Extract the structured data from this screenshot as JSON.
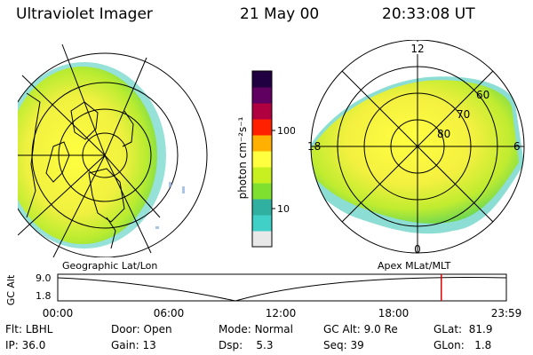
{
  "header": {
    "instrument": "Ultraviolet Imager",
    "date": "21 May 00",
    "time": "20:33:08 UT"
  },
  "colorbar": {
    "unit_label": "photon cm⁻²s⁻¹",
    "ticks": [
      "100",
      "10"
    ],
    "colors": [
      "#e8e8e8",
      "#40d0c8",
      "#30b0a0",
      "#80e030",
      "#c8f020",
      "#ffff40",
      "#ffb000",
      "#ff2000",
      "#b00040",
      "#600060",
      "#200040"
    ]
  },
  "left_map": {
    "label": "Geographic Lat/Lon"
  },
  "right_map": {
    "label": "Apex MLat/MLT",
    "mlt_labels": {
      "top": "12",
      "left": "18",
      "right": "6",
      "bottom": "0"
    },
    "lat_labels": [
      "60",
      "70",
      "80"
    ]
  },
  "timeline": {
    "ylabel": "GC Alt",
    "y_ticks": [
      "9.0",
      "1.8"
    ],
    "x_ticks": [
      "00:00",
      "06:00",
      "12:00",
      "18:00",
      "23:59"
    ],
    "current_fraction": 0.855
  },
  "info": {
    "row1": [
      {
        "label": "Flt:",
        "value": "LBHL"
      },
      {
        "label": "Door:",
        "value": "Open"
      },
      {
        "label": "Mode:",
        "value": "Normal"
      },
      {
        "label": "GC Alt:",
        "value": "9.0 Re"
      },
      {
        "label": "GLat:",
        "value": "81.9"
      }
    ],
    "row2": [
      {
        "label": "IP:",
        "value": "36.0"
      },
      {
        "label": "Gain:",
        "value": "13"
      },
      {
        "label": "Dsp:",
        "value": "5.3"
      },
      {
        "label": "Seq:",
        "value": "39"
      },
      {
        "label": "GLon:",
        "value": "1.8"
      }
    ]
  }
}
